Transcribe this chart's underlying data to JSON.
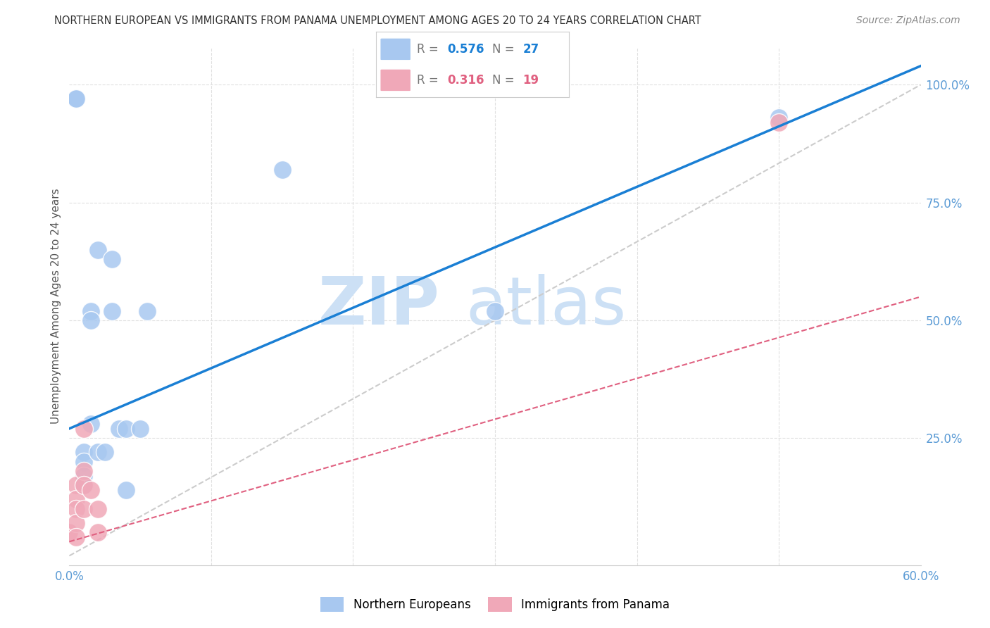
{
  "title": "NORTHERN EUROPEAN VS IMMIGRANTS FROM PANAMA UNEMPLOYMENT AMONG AGES 20 TO 24 YEARS CORRELATION CHART",
  "source": "Source: ZipAtlas.com",
  "ylabel_label": "Unemployment Among Ages 20 to 24 years",
  "xlim": [
    0.0,
    0.6
  ],
  "ylim": [
    -0.02,
    1.08
  ],
  "blue_R": 0.576,
  "blue_N": 27,
  "pink_R": 0.316,
  "pink_N": 19,
  "blue_color": "#a8c8f0",
  "pink_color": "#f0a8b8",
  "blue_line_color": "#1a7fd4",
  "pink_line_color": "#e06080",
  "ref_line_color": "#cccccc",
  "watermark_zip": "ZIP",
  "watermark_atlas": "atlas",
  "watermark_color": "#cce0f5",
  "blue_line_x0": 0.0,
  "blue_line_y0": 0.27,
  "blue_line_x1": 0.6,
  "blue_line_y1": 1.04,
  "pink_line_x0": 0.0,
  "pink_line_y0": 0.03,
  "pink_line_x1": 0.6,
  "pink_line_y1": 0.55,
  "ref_line_x0": 0.0,
  "ref_line_y0": 0.0,
  "ref_line_x1": 0.6,
  "ref_line_y1": 1.0,
  "blue_points_x": [
    0.005,
    0.005,
    0.005,
    0.005,
    0.005,
    0.005,
    0.005,
    0.01,
    0.01,
    0.01,
    0.01,
    0.015,
    0.015,
    0.015,
    0.02,
    0.02,
    0.025,
    0.03,
    0.03,
    0.035,
    0.04,
    0.04,
    0.05,
    0.055,
    0.15,
    0.3,
    0.5
  ],
  "blue_points_y": [
    0.97,
    0.97,
    0.97,
    0.97,
    0.97,
    0.97,
    0.97,
    0.22,
    0.2,
    0.17,
    0.15,
    0.52,
    0.5,
    0.28,
    0.65,
    0.22,
    0.22,
    0.63,
    0.52,
    0.27,
    0.27,
    0.14,
    0.27,
    0.52,
    0.82,
    0.52,
    0.93
  ],
  "pink_points_x": [
    0.0,
    0.0,
    0.0,
    0.0,
    0.0,
    0.0,
    0.005,
    0.005,
    0.005,
    0.005,
    0.005,
    0.01,
    0.01,
    0.01,
    0.01,
    0.015,
    0.02,
    0.02,
    0.5
  ],
  "pink_points_y": [
    0.05,
    0.05,
    0.05,
    0.05,
    0.05,
    0.05,
    0.15,
    0.12,
    0.1,
    0.07,
    0.04,
    0.18,
    0.15,
    0.1,
    0.27,
    0.14,
    0.1,
    0.05,
    0.92
  ],
  "xticks": [
    0.0,
    0.1,
    0.2,
    0.3,
    0.4,
    0.5,
    0.6
  ],
  "xlabels": [
    "0.0%",
    "",
    "",
    "",
    "",
    "",
    "60.0%"
  ],
  "yticks_right": [
    0.25,
    0.5,
    0.75,
    1.0
  ],
  "ylabels_right": [
    "25.0%",
    "50.0%",
    "75.0%",
    "100.0%"
  ],
  "tick_color": "#5b9bd5",
  "grid_color": "#e0e0e0",
  "background_color": "#ffffff"
}
